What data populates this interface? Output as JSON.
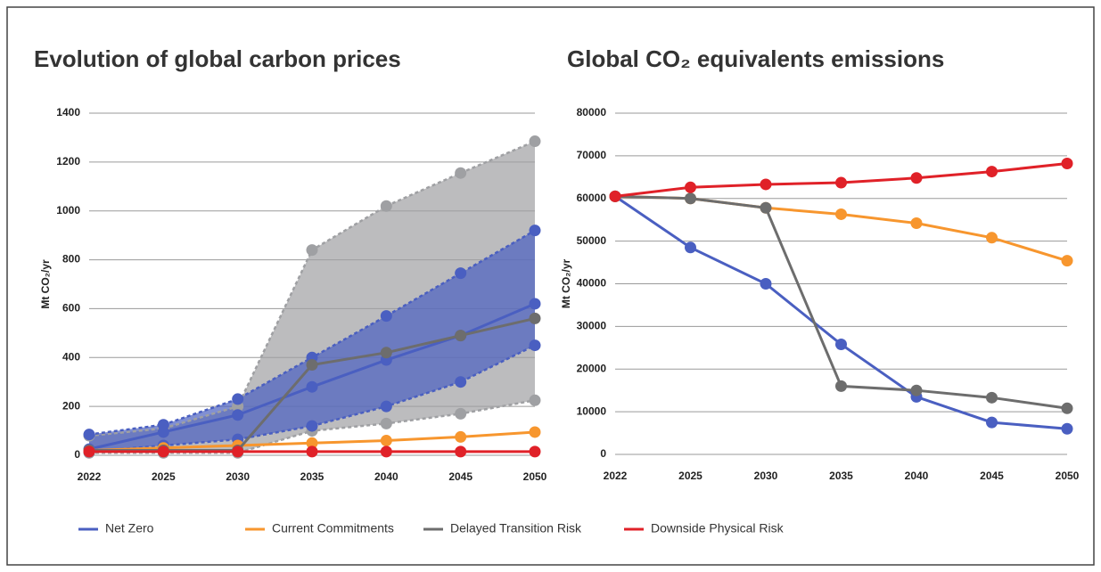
{
  "chart_data": [
    {
      "type": "line",
      "title": "Evolution of global carbon prices",
      "y_label": "Mt CO₂/yr",
      "categories": [
        "2022",
        "2025",
        "2030",
        "2035",
        "2040",
        "2045",
        "2050"
      ],
      "ylim": [
        0,
        1400
      ],
      "yticks": [
        0,
        200,
        400,
        600,
        800,
        1000,
        1200,
        1400
      ],
      "grid": true,
      "bands": [
        {
          "color": "#9fa0a3",
          "upper": [
            80,
            110,
            200,
            840,
            1020,
            1155,
            1285
          ],
          "lower": [
            10,
            10,
            10,
            100,
            130,
            170,
            225
          ]
        },
        {
          "color": "#4a5fc1",
          "upper": [
            85,
            125,
            230,
            400,
            570,
            745,
            920
          ],
          "lower": [
            15,
            40,
            65,
            120,
            200,
            300,
            450
          ]
        }
      ],
      "series": [
        {
          "name": "Net Zero",
          "color": "#4a5fc1",
          "values": [
            25,
            95,
            165,
            280,
            390,
            490,
            620
          ]
        },
        {
          "name": "Current Commitments",
          "color": "#f7962e",
          "values": [
            20,
            30,
            40,
            50,
            60,
            75,
            95
          ]
        },
        {
          "name": "Delayed Transition Risk",
          "color": "#6d6d6d",
          "values": [
            20,
            20,
            20,
            370,
            420,
            490,
            560
          ]
        },
        {
          "name": "Downside Physical Risk",
          "color": "#e02128",
          "values": [
            15,
            15,
            15,
            15,
            15,
            15,
            15
          ]
        }
      ]
    },
    {
      "type": "line",
      "title": "Global CO₂ equivalents emissions",
      "y_label": "Mt CO₂/yr",
      "categories": [
        "2022",
        "2025",
        "2030",
        "2035",
        "2040",
        "2045",
        "2050"
      ],
      "ylim": [
        0,
        80000
      ],
      "yticks": [
        0,
        10000,
        20000,
        30000,
        40000,
        50000,
        60000,
        70000,
        80000
      ],
      "grid": true,
      "series": [
        {
          "name": "Net Zero",
          "color": "#4a5fc1",
          "values": [
            60500,
            48500,
            40000,
            25800,
            13500,
            7500,
            6000
          ]
        },
        {
          "name": "Current Commitments",
          "color": "#f7962e",
          "values": [
            60500,
            60000,
            57800,
            56300,
            54200,
            50800,
            45400
          ]
        },
        {
          "name": "Delayed Transition Risk",
          "color": "#6d6d6d",
          "values": [
            60500,
            60000,
            57800,
            16000,
            15000,
            13300,
            10800
          ]
        },
        {
          "name": "Downside Physical Risk",
          "color": "#e02128",
          "values": [
            60500,
            62600,
            63300,
            63700,
            64800,
            66300,
            68200
          ]
        }
      ]
    }
  ]
}
